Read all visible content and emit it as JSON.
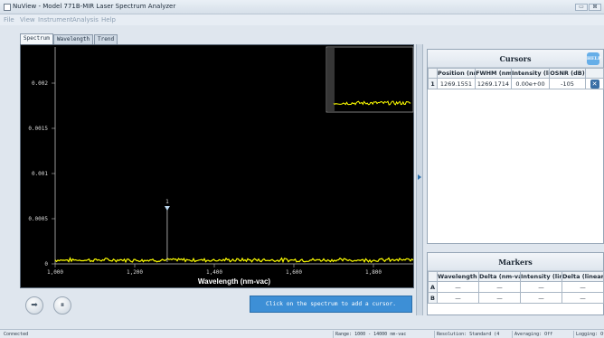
{
  "window": {
    "title": "NuView - Model 771B-MIR Laser Spectrum Analyzer",
    "minimize_glyph": "▭",
    "close_glyph": "⊠"
  },
  "menu": [
    "File",
    "View",
    "Instrument",
    "Analysis",
    "Help"
  ],
  "tabs": [
    "Spectrum",
    "Wavelength",
    "Trend"
  ],
  "active_tab": "Spectrum",
  "plot": {
    "y_ticks": [
      "0.002",
      "0.0015",
      "0.001",
      "0.0005",
      "0"
    ],
    "x_ticks": [
      "1,000",
      "1,200",
      "1,400",
      "1,600",
      "1,800"
    ],
    "xlabel": "Wavelength (nm-vac)",
    "cursor_label": "1"
  },
  "chart_data": {
    "type": "line",
    "x_range": [
      1000,
      1860
    ],
    "ylim": [
      0,
      0.0023
    ],
    "y_ticks": [
      0.002,
      0.0015,
      0.001,
      0.0005,
      0
    ],
    "x_ticks": [
      1000,
      1200,
      1400,
      1600,
      1800
    ],
    "xlabel": "Wavelength (nm-vac)",
    "noise_floor": 2e-05,
    "cursor_x": 1269.1551,
    "series_color": "#ffff00"
  },
  "controls": {
    "run_glyph": "➡",
    "pause_glyph": "⏸",
    "hint": "Click on the spectrum to add a cursor."
  },
  "cursors": {
    "title": "Cursors",
    "help_label": "HELP",
    "columns": [
      "Position (nm-vac)",
      "FWHM (nm-vac)",
      "Intensity (linear)",
      "OSNR (dB)"
    ],
    "rows": [
      {
        "index": "1",
        "position": "1269.1551",
        "fwhm": "1269.1714",
        "intensity": "0.00e+00",
        "osnr": "-105",
        "delete": "✕"
      }
    ]
  },
  "markers": {
    "title": "Markers",
    "columns": [
      "Wavelength (nm-vac)",
      "Delta (nm-vac)",
      "Intensity (linear)",
      "Delta (linear)"
    ],
    "rows": [
      {
        "index": "A",
        "cells": [
          "—",
          "—",
          "—",
          "—"
        ]
      },
      {
        "index": "B",
        "cells": [
          "—",
          "—",
          "—",
          "—"
        ]
      }
    ]
  },
  "status": {
    "left": "Connected",
    "range": "Range: 1000 - 14000 nm-vac",
    "resolution": "Resolution: Standard (4",
    "averaging": "Averaging: Off",
    "logging": "Logging: Off"
  },
  "colors": {
    "accent": "#3d8fd6",
    "plot_bg": "#000000",
    "trace": "#ffff00"
  }
}
